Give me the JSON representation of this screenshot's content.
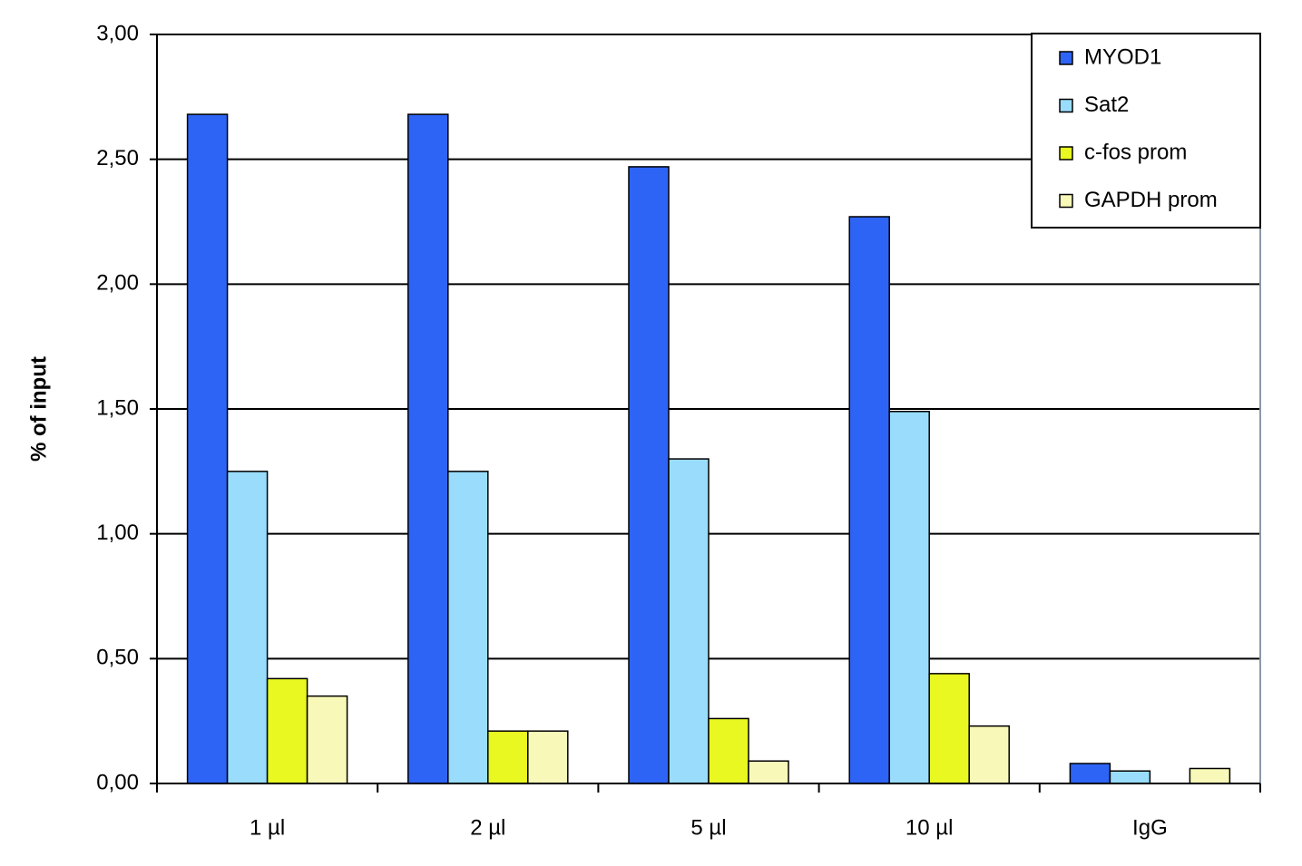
{
  "chart_data": {
    "type": "bar",
    "y_label": "% of input",
    "categories": [
      "1 µl",
      "2 µl",
      "5 µl",
      "10 µl",
      "IgG"
    ],
    "series": [
      {
        "name": "MYOD1",
        "color": "#2e64f5",
        "values": [
          2.68,
          2.68,
          2.47,
          2.27,
          0.08
        ]
      },
      {
        "name": "Sat2",
        "color": "#99dcfb",
        "values": [
          1.25,
          1.25,
          1.3,
          1.49,
          0.05
        ]
      },
      {
        "name": "c-fos prom",
        "color": "#e8f820",
        "values": [
          0.42,
          0.21,
          0.26,
          0.44,
          null
        ]
      },
      {
        "name": "GAPDH prom",
        "color": "#f8f8b8",
        "values": [
          0.35,
          0.21,
          0.09,
          0.23,
          0.06
        ]
      }
    ],
    "ylim": [
      0,
      3
    ],
    "yticks": [
      {
        "value": 0,
        "label": "0,00"
      },
      {
        "value": 0.5,
        "label": "0,50"
      },
      {
        "value": 1,
        "label": "1,00"
      },
      {
        "value": 1.5,
        "label": "1,50"
      },
      {
        "value": 2,
        "label": "2,00"
      },
      {
        "value": 2.5,
        "label": "2,50"
      },
      {
        "value": 3,
        "label": "3,00"
      }
    ],
    "grid": true,
    "legend": "top-right"
  }
}
